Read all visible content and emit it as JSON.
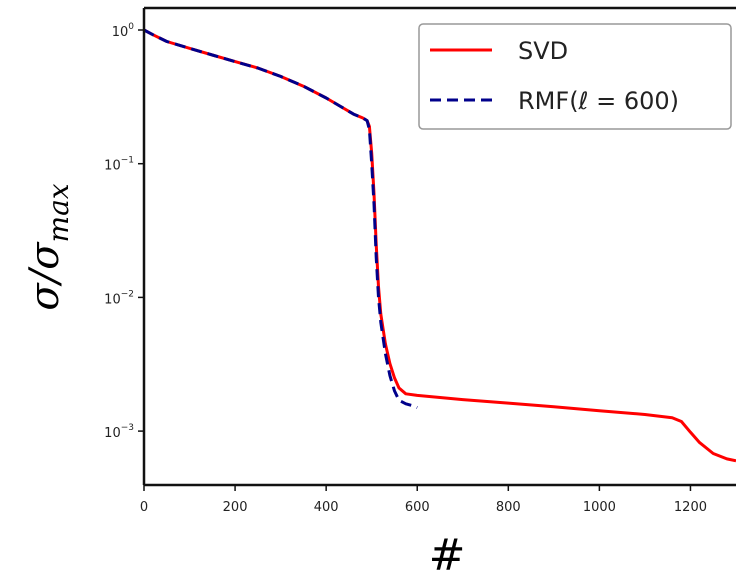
{
  "chart_data": {
    "type": "line",
    "xlabel": "#",
    "ylabel": {
      "base": "σ/σ",
      "subscript": "max"
    },
    "yscale": "log",
    "xlim": [
      0,
      1300
    ],
    "ylim": [
      0.0004,
      1.4
    ],
    "grid": false,
    "legend_position": "top-right",
    "x_ticks": [
      0,
      200,
      400,
      600,
      800,
      1000,
      1200
    ],
    "y_ticks": [
      {
        "value": 1,
        "base": "10",
        "exp": "0"
      },
      {
        "value": 0.1,
        "base": "10",
        "exp": "−1"
      },
      {
        "value": 0.01,
        "base": "10",
        "exp": "−2"
      },
      {
        "value": 0.001,
        "base": "10",
        "exp": "−3"
      }
    ],
    "series": [
      {
        "name": "SVD",
        "color": "#ff0000",
        "style": "solid",
        "x": [
          0,
          20,
          50,
          100,
          150,
          200,
          250,
          300,
          350,
          400,
          430,
          460,
          480,
          490,
          495,
          500,
          505,
          510,
          515,
          520,
          530,
          540,
          550,
          560,
          575,
          600,
          700,
          800,
          900,
          1000,
          1100,
          1160,
          1180,
          1200,
          1220,
          1250,
          1280,
          1300
        ],
        "y": [
          1.0,
          0.92,
          0.82,
          0.73,
          0.65,
          0.58,
          0.52,
          0.45,
          0.38,
          0.31,
          0.27,
          0.235,
          0.22,
          0.21,
          0.19,
          0.12,
          0.06,
          0.025,
          0.012,
          0.0075,
          0.0045,
          0.0032,
          0.0025,
          0.0021,
          0.0019,
          0.00185,
          0.00172,
          0.00162,
          0.00152,
          0.00142,
          0.00133,
          0.00126,
          0.00118,
          0.00098,
          0.00082,
          0.00068,
          0.00062,
          0.0006
        ]
      },
      {
        "name": "RMF(ℓ = 600)",
        "color": "#00008b",
        "style": "dashed",
        "x": [
          0,
          20,
          50,
          100,
          150,
          200,
          250,
          300,
          350,
          400,
          430,
          460,
          480,
          490,
          495,
          500,
          505,
          510,
          515,
          520,
          530,
          540,
          550,
          560,
          575,
          590,
          600
        ],
        "y": [
          1.0,
          0.92,
          0.82,
          0.73,
          0.65,
          0.58,
          0.52,
          0.45,
          0.38,
          0.31,
          0.27,
          0.235,
          0.22,
          0.21,
          0.18,
          0.1,
          0.05,
          0.02,
          0.01,
          0.0065,
          0.0038,
          0.0026,
          0.002,
          0.0017,
          0.0016,
          0.00155,
          0.0015
        ]
      }
    ]
  }
}
